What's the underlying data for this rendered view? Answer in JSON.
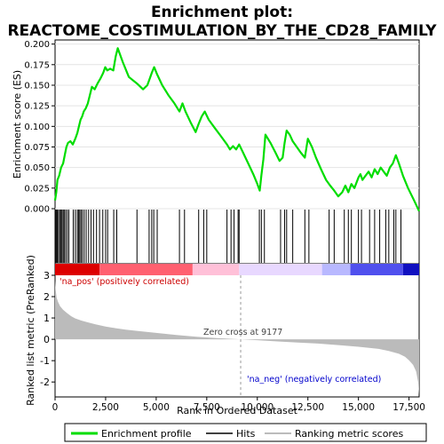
{
  "chart_data": [
    {
      "type": "line",
      "title": "Enrichment plot:",
      "subtitle": "REACTOME_COSTIMULATION_BY_THE_CD28_FAMILY",
      "ylabel": "Enrichment score (ES)",
      "xlim": [
        0,
        18000
      ],
      "ylim": [
        0.0,
        0.205
      ],
      "yticks": [
        0.0,
        0.025,
        0.05,
        0.075,
        0.1,
        0.125,
        0.15,
        0.175,
        0.2
      ],
      "yticklabels": [
        "0.000",
        "0.025",
        "0.050",
        "0.075",
        "0.100",
        "0.125",
        "0.150",
        "0.175",
        "0.200"
      ],
      "color": "#00dd00",
      "series": [
        {
          "name": "Enrichment profile",
          "x": [
            0,
            60,
            120,
            200,
            300,
            400,
            480,
            560,
            640,
            760,
            880,
            1000,
            1100,
            1180,
            1260,
            1340,
            1420,
            1520,
            1620,
            1720,
            1820,
            1960,
            2100,
            2240,
            2380,
            2480,
            2580,
            2720,
            2880,
            3000,
            3100,
            3350,
            3650,
            4050,
            4350,
            4560,
            4680,
            4780,
            4900,
            5050,
            5300,
            5600,
            5900,
            6150,
            6300,
            6450,
            6700,
            6950,
            7100,
            7250,
            7400,
            7600,
            7900,
            8200,
            8500,
            8650,
            8800,
            8950,
            9100,
            9300,
            9550,
            9800,
            10000,
            10120,
            10200,
            10300,
            10400,
            10650,
            10900,
            11100,
            11250,
            11350,
            11450,
            11600,
            11750,
            11950,
            12150,
            12350,
            12500,
            12700,
            12900,
            13150,
            13400,
            13600,
            13800,
            14000,
            14200,
            14350,
            14500,
            14650,
            14800,
            15000,
            15100,
            15200,
            15350,
            15500,
            15650,
            15800,
            15950,
            16100,
            16250,
            16400,
            16550,
            16700,
            16850,
            17000,
            17200,
            17450,
            17750,
            18000
          ],
          "y": [
            0.01,
            0.02,
            0.035,
            0.04,
            0.05,
            0.055,
            0.065,
            0.075,
            0.08,
            0.082,
            0.078,
            0.085,
            0.092,
            0.1,
            0.108,
            0.112,
            0.118,
            0.122,
            0.128,
            0.138,
            0.148,
            0.145,
            0.152,
            0.158,
            0.165,
            0.172,
            0.168,
            0.17,
            0.168,
            0.185,
            0.195,
            0.178,
            0.16,
            0.152,
            0.145,
            0.15,
            0.158,
            0.165,
            0.172,
            0.163,
            0.15,
            0.138,
            0.128,
            0.118,
            0.128,
            0.118,
            0.105,
            0.093,
            0.103,
            0.112,
            0.118,
            0.108,
            0.098,
            0.088,
            0.078,
            0.072,
            0.076,
            0.072,
            0.078,
            0.068,
            0.055,
            0.042,
            0.03,
            0.022,
            0.04,
            0.06,
            0.09,
            0.08,
            0.068,
            0.058,
            0.062,
            0.08,
            0.095,
            0.09,
            0.082,
            0.075,
            0.068,
            0.062,
            0.085,
            0.075,
            0.062,
            0.048,
            0.035,
            0.028,
            0.022,
            0.015,
            0.02,
            0.028,
            0.02,
            0.03,
            0.025,
            0.038,
            0.042,
            0.035,
            0.04,
            0.045,
            0.038,
            0.048,
            0.042,
            0.05,
            0.045,
            0.04,
            0.05,
            0.055,
            0.065,
            0.055,
            0.04,
            0.025,
            0.01,
            -0.003
          ]
        }
      ]
    },
    {
      "type": "bar",
      "title": "",
      "name": "Hits",
      "color": "#000000",
      "hits": [
        20,
        60,
        110,
        170,
        230,
        290,
        340,
        400,
        450,
        520,
        600,
        680,
        900,
        1000,
        1100,
        1160,
        1220,
        1280,
        1350,
        1440,
        1540,
        1660,
        1780,
        1900,
        2050,
        2200,
        2360,
        2500,
        2600,
        2900,
        3050,
        4050,
        4650,
        4780,
        4880,
        5050,
        6150,
        6400,
        7100,
        7350,
        7500,
        8500,
        8700,
        8850,
        9050,
        9100,
        10100,
        10200,
        10350,
        11150,
        11350,
        11450,
        11750,
        12350,
        12550,
        13550,
        13800,
        14300,
        14500,
        14650,
        15000,
        15150,
        15550,
        15800,
        16050,
        16350,
        16500,
        16750,
        16850,
        17100
      ]
    },
    {
      "type": "heatmap",
      "title": "",
      "name": "Rank position color bar",
      "colors_low_to_high_rank": [
        "#dd0000",
        "#ff6070",
        "#ffc0d8",
        "#e8d8ff",
        "#b8b8ff",
        "#5050ee",
        "#1010c0"
      ],
      "breaks": [
        0,
        2200,
        6800,
        9100,
        13200,
        14600,
        17200,
        18000
      ]
    },
    {
      "type": "area",
      "title": "",
      "name": "Ranking metric scores",
      "ylabel": "Ranked list metric (PreRanked)",
      "xlabel": "Rank in Ordered Dataset",
      "xlim": [
        0,
        18000
      ],
      "ylim": [
        -2.7,
        3.0
      ],
      "xticks": [
        0,
        2500,
        5000,
        7500,
        10000,
        12500,
        15000,
        17500
      ],
      "xticklabels": [
        "0",
        "2,500",
        "5,000",
        "7,500",
        "10,000",
        "12,500",
        "15,000",
        "17,500"
      ],
      "yticks": [
        -2,
        -1,
        0,
        1,
        2,
        3
      ],
      "yticklabels": [
        "-2",
        "-1",
        "0",
        "1",
        "2",
        "3"
      ],
      "color": "#bbbbbb",
      "x": [
        0,
        30,
        80,
        150,
        250,
        400,
        600,
        800,
        1000,
        1300,
        1600,
        2000,
        2500,
        3000,
        3500,
        4000,
        5000,
        6000,
        7000,
        8000,
        9177,
        10000,
        11000,
        12000,
        13000,
        14000,
        15000,
        16000,
        16500,
        17000,
        17300,
        17500,
        17700,
        17850,
        17950,
        18000
      ],
      "y": [
        2.75,
        2.3,
        1.95,
        1.75,
        1.55,
        1.38,
        1.22,
        1.08,
        0.98,
        0.88,
        0.8,
        0.7,
        0.6,
        0.52,
        0.45,
        0.4,
        0.3,
        0.2,
        0.12,
        0.06,
        0.0,
        -0.04,
        -0.1,
        -0.15,
        -0.2,
        -0.27,
        -0.35,
        -0.45,
        -0.55,
        -0.68,
        -0.82,
        -0.98,
        -1.2,
        -1.5,
        -2.0,
        -2.6
      ],
      "annotations": {
        "zero_cross": "Zero cross at 9177",
        "zero_cross_x": 9177,
        "pos_label": "'na_pos' (positively correlated)",
        "neg_label": "'na_neg' (negatively correlated)"
      }
    }
  ],
  "legend": {
    "items": [
      {
        "label": "Enrichment profile",
        "color": "#00dd00"
      },
      {
        "label": "Hits",
        "color": "#000000"
      },
      {
        "label": "Ranking metric scores",
        "color": "#bbbbbb"
      }
    ]
  }
}
